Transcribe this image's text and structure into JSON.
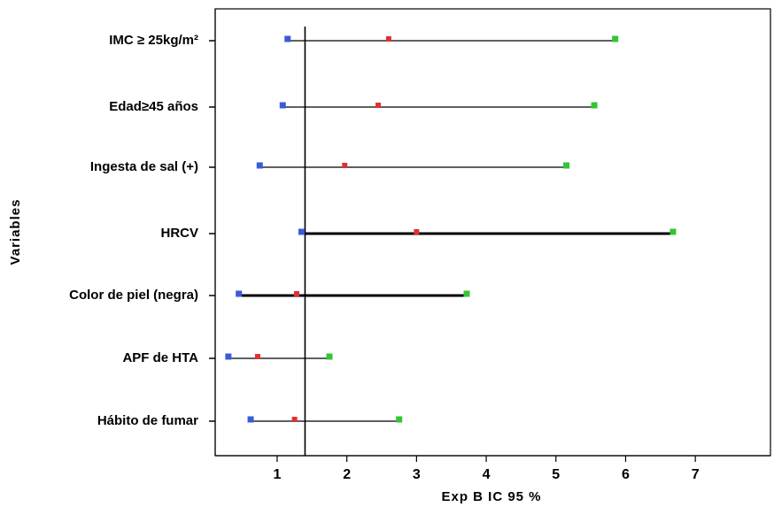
{
  "chart_data": {
    "type": "forest",
    "xlabel": "Exp B IC 95  %",
    "ylabel": "Variables",
    "xlim": [
      0,
      8.5
    ],
    "x_ticks": [
      "1",
      "2",
      "3",
      "4",
      "5",
      "6",
      "7"
    ],
    "reference_line": 1.4,
    "categories": [
      "IMC ≥ 25kg/m²",
      "Edad≥45 años",
      "Ingesta de sal (+)",
      "HRCV",
      "Color de piel (negra)",
      "APF de HTA",
      "Hábito de fumar"
    ],
    "series": [
      {
        "key": "lower",
        "values": [
          1.15,
          1.08,
          0.75,
          1.35,
          0.45,
          0.3,
          0.62
        ]
      },
      {
        "key": "estimate",
        "values": [
          2.6,
          2.45,
          1.97,
          3.0,
          1.28,
          0.72,
          1.25
        ]
      },
      {
        "key": "upper",
        "values": [
          5.85,
          5.55,
          5.15,
          6.68,
          3.72,
          1.75,
          2.75
        ]
      }
    ],
    "colors": {
      "lower": "#3a5bd9",
      "estimate": "#e03030",
      "upper": "#33c533",
      "line": "#000000"
    }
  }
}
